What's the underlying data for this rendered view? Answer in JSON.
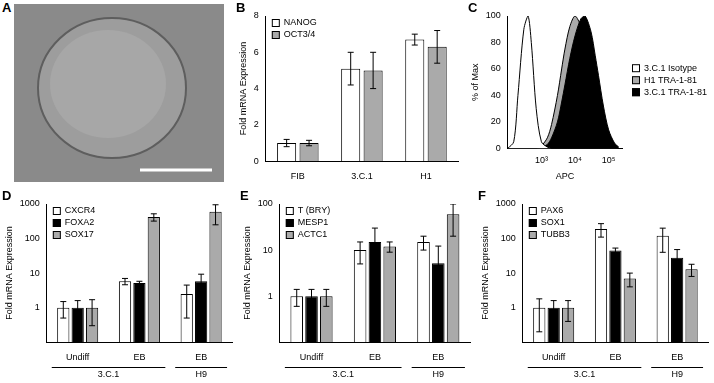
{
  "panel_a": {
    "title": "A"
  },
  "chart_data": [
    {
      "type": "bar",
      "title": "B",
      "categories": [
        "FIB",
        "3.C.1",
        "H1"
      ],
      "ylabel": "Fold mRNA Expression",
      "ylim": [
        0,
        8
      ],
      "yticks": [
        0,
        2,
        4,
        6,
        8
      ],
      "grid": false,
      "legend": "upper left",
      "series": [
        {
          "name": "NANOG",
          "color": "#ffffff",
          "values": [
            1,
            5.1,
            6.7
          ],
          "errors": [
            0.2,
            0.9,
            0.3
          ]
        },
        {
          "name": "OCT3/4",
          "color": "#aaaaaa",
          "values": [
            1,
            5,
            6.3
          ],
          "errors": [
            0.15,
            1,
            0.9
          ]
        }
      ]
    },
    {
      "type": "area",
      "title": "C",
      "xlabel": "APC",
      "ylabel": "% of Max",
      "log": "x",
      "grid": false,
      "legend": "right",
      "x": [
        100,
        150,
        200,
        300,
        400,
        500,
        700,
        1000,
        1500,
        2000,
        3000,
        4000,
        5000,
        7000,
        10000,
        15000,
        20000,
        30000,
        40000,
        50000,
        70000,
        100000,
        150000,
        200000
      ],
      "xlim": [
        100,
        250000
      ],
      "xticks": [
        {
          "value": 1000,
          "label": "10³"
        },
        {
          "value": 10000,
          "label": "10⁴"
        },
        {
          "value": 100000,
          "label": "10⁵"
        }
      ],
      "ylim": [
        0,
        100
      ],
      "yticks": [
        0,
        20,
        40,
        60,
        80,
        100
      ],
      "series": [
        {
          "name": "3.C.1 Isotype",
          "color": "#ffffff",
          "values": [
            0,
            5,
            40,
            90,
            100,
            80,
            30,
            5,
            1,
            0,
            0,
            0,
            0,
            0,
            0,
            0,
            0,
            0,
            0,
            0,
            0,
            0,
            0,
            0
          ]
        },
        {
          "name": "H1 TRA-1-81",
          "color": "#aaaaaa",
          "values": [
            0,
            0,
            0,
            0,
            0,
            0,
            0,
            2,
            8,
            18,
            40,
            60,
            75,
            92,
            100,
            92,
            78,
            55,
            38,
            25,
            12,
            4,
            1,
            0
          ]
        },
        {
          "name": "3.C.1 TRA-1-81",
          "color": "#000000",
          "values": [
            0,
            0,
            0,
            0,
            0,
            0,
            0,
            1,
            3,
            8,
            20,
            35,
            48,
            68,
            85,
            98,
            100,
            88,
            70,
            55,
            32,
            14,
            4,
            1
          ]
        }
      ]
    },
    {
      "type": "bar",
      "title": "D",
      "categories": [
        "Undiff",
        "EB",
        "EB"
      ],
      "group_labels": [
        "3.C.1",
        "3.C.1",
        "H9"
      ],
      "ylabel": "Fold mRNA Expression",
      "log": "y",
      "ylim": [
        0.1,
        1000
      ],
      "yticks": [
        1,
        10,
        100,
        1000
      ],
      "grid": false,
      "legend": "upper left",
      "series": [
        {
          "name": "CXCR4",
          "color": "#ffffff",
          "values": [
            1,
            5.8,
            2.5
          ],
          "errors": [
            0.5,
            1.2,
            2
          ]
        },
        {
          "name": "FOXA2",
          "color": "#000000",
          "values": [
            1,
            5.2,
            5.8
          ],
          "errors": [
            0.6,
            0.6,
            3.5
          ]
        },
        {
          "name": "SOX17",
          "color": "#aaaaaa",
          "values": [
            1,
            420,
            600
          ],
          "errors": [
            0.7,
            100,
            350
          ]
        }
      ]
    },
    {
      "type": "bar",
      "title": "E",
      "categories": [
        "Undiff",
        "EB",
        "EB"
      ],
      "group_labels": [
        "3.C.1",
        "3.C.1",
        "H9"
      ],
      "ylabel": "Fold mRNA Expression",
      "log": "y",
      "ylim": [
        0.1,
        100
      ],
      "yticks": [
        1,
        10,
        100
      ],
      "grid": false,
      "legend": "upper left",
      "series": [
        {
          "name": "T (BRY)",
          "color": "#ffffff",
          "values": [
            1,
            10,
            15
          ],
          "errors": [
            0.4,
            5,
            5
          ]
        },
        {
          "name": "MESP1",
          "color": "#000000",
          "values": [
            1,
            15,
            5.2
          ],
          "errors": [
            0.4,
            15,
            7
          ]
        },
        {
          "name": "ACTC1",
          "color": "#aaaaaa",
          "values": [
            1,
            12,
            60
          ],
          "errors": [
            0.4,
            3,
            40
          ]
        }
      ]
    },
    {
      "type": "bar",
      "title": "F",
      "categories": [
        "Undiff",
        "EB",
        "EB"
      ],
      "group_labels": [
        "3.C.1",
        "3.C.1",
        "H9"
      ],
      "ylabel": "Fold mRNA Expression",
      "log": "y",
      "ylim": [
        0.1,
        1000
      ],
      "yticks": [
        1,
        10,
        100,
        1000
      ],
      "grid": false,
      "legend": "upper left",
      "series": [
        {
          "name": "PAX6",
          "color": "#ffffff",
          "values": [
            1,
            190,
            120
          ],
          "errors": [
            0.8,
            80,
            80
          ]
        },
        {
          "name": "SOX1",
          "color": "#000000",
          "values": [
            1,
            45,
            28
          ],
          "errors": [
            0.6,
            8,
            20
          ]
        },
        {
          "name": "TUBB3",
          "color": "#aaaaaa",
          "values": [
            1,
            7,
            13
          ],
          "errors": [
            0.6,
            3,
            5
          ]
        }
      ]
    }
  ]
}
